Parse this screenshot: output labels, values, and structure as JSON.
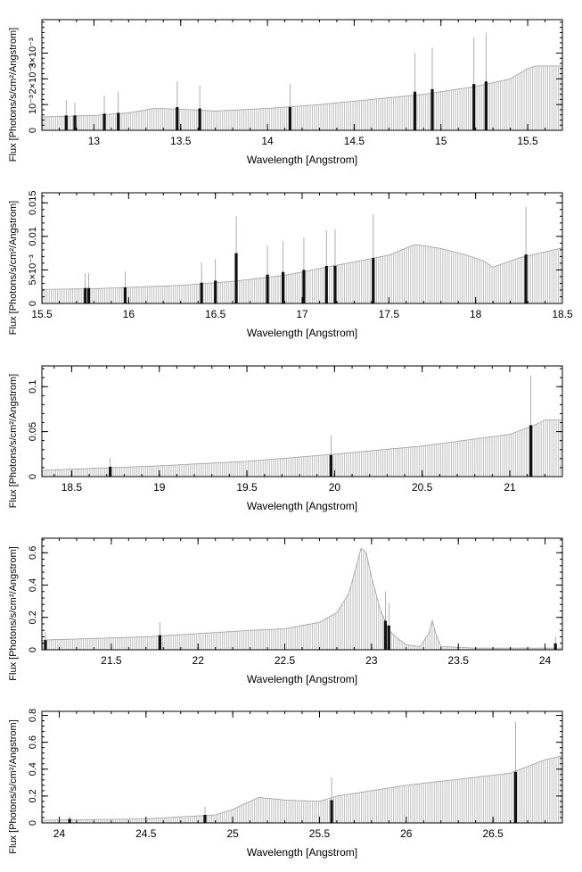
{
  "chart_data": [
    {
      "type": "bar",
      "xlabel": "Wavelength [Angstrom]",
      "ylabel": "Flux [Photons/s/cm²/Angstrom]",
      "xlim": [
        12.7,
        15.7
      ],
      "ylim": [
        0,
        0.0043
      ],
      "xticks": [
        13,
        13.5,
        14,
        14.5,
        15,
        15.5
      ],
      "xtick_labels": [
        "13",
        "13.5",
        "14",
        "14.5",
        "15",
        "15.5"
      ],
      "yticks": [
        0,
        0.001,
        0.002,
        0.003
      ],
      "ytick_labels": [
        "0",
        "10⁻³",
        "2×10⁻³",
        "3×10⁻³"
      ],
      "continuum": [
        [
          12.7,
          0.00052
        ],
        [
          13.0,
          0.00058
        ],
        [
          13.2,
          0.00068
        ],
        [
          13.35,
          0.00085
        ],
        [
          13.5,
          0.00082
        ],
        [
          13.7,
          0.00075
        ],
        [
          14.0,
          0.00085
        ],
        [
          14.3,
          0.001
        ],
        [
          14.6,
          0.0012
        ],
        [
          14.9,
          0.0014
        ],
        [
          15.2,
          0.0017
        ],
        [
          15.4,
          0.002
        ],
        [
          15.5,
          0.0024
        ],
        [
          15.55,
          0.0025
        ],
        [
          15.7,
          0.0025
        ]
      ],
      "lines": [
        {
          "x": 12.84,
          "flux": 0.00058,
          "err": 0.0006
        },
        {
          "x": 12.89,
          "flux": 0.00058,
          "err": 0.0005
        },
        {
          "x": 13.06,
          "flux": 0.00065,
          "err": 0.0007
        },
        {
          "x": 13.14,
          "flux": 0.00068,
          "err": 0.0008
        },
        {
          "x": 13.48,
          "flux": 0.0009,
          "err": 0.001
        },
        {
          "x": 13.61,
          "flux": 0.00085,
          "err": 0.0009
        },
        {
          "x": 14.13,
          "flux": 0.0009,
          "err": 0.0009
        },
        {
          "x": 14.85,
          "flux": 0.0015,
          "err": 0.0015
        },
        {
          "x": 14.95,
          "flux": 0.0016,
          "err": 0.0016
        },
        {
          "x": 15.19,
          "flux": 0.0018,
          "err": 0.0018
        },
        {
          "x": 15.26,
          "flux": 0.0019,
          "err": 0.0019
        }
      ]
    },
    {
      "type": "bar",
      "xlabel": "Wavelength [Angstrom]",
      "ylabel": "Flux [Photons/s/cm²/Angstrom]",
      "xlim": [
        15.5,
        18.5
      ],
      "ylim": [
        0,
        0.0165
      ],
      "xticks": [
        15.5,
        16,
        16.5,
        17,
        17.5,
        18,
        18.5
      ],
      "xtick_labels": [
        "15.5",
        "16",
        "16.5",
        "17",
        "17.5",
        "18",
        "18.5"
      ],
      "yticks": [
        0,
        0.005,
        0.01,
        0.015
      ],
      "ytick_labels": [
        "0",
        "5×10⁻³",
        "0.01",
        "0.015"
      ],
      "continuum": [
        [
          15.5,
          0.0021
        ],
        [
          15.8,
          0.0022
        ],
        [
          16.0,
          0.0024
        ],
        [
          16.3,
          0.0027
        ],
        [
          16.6,
          0.0033
        ],
        [
          16.9,
          0.0042
        ],
        [
          17.1,
          0.0052
        ],
        [
          17.3,
          0.0062
        ],
        [
          17.5,
          0.0072
        ],
        [
          17.65,
          0.0088
        ],
        [
          17.8,
          0.0082
        ],
        [
          17.95,
          0.0072
        ],
        [
          18.05,
          0.0063
        ],
        [
          18.1,
          0.0054
        ],
        [
          18.25,
          0.0068
        ],
        [
          18.5,
          0.0083
        ]
      ],
      "lines": [
        {
          "x": 15.75,
          "flux": 0.0023,
          "err": 0.0022
        },
        {
          "x": 15.77,
          "flux": 0.0023,
          "err": 0.0022
        },
        {
          "x": 15.98,
          "flux": 0.0024,
          "err": 0.0024
        },
        {
          "x": 16.42,
          "flux": 0.0031,
          "err": 0.003
        },
        {
          "x": 16.5,
          "flux": 0.0034,
          "err": 0.0032
        },
        {
          "x": 16.62,
          "flux": 0.0075,
          "err": 0.0055
        },
        {
          "x": 16.8,
          "flux": 0.0043,
          "err": 0.0043
        },
        {
          "x": 16.89,
          "flux": 0.0047,
          "err": 0.0046
        },
        {
          "x": 17.01,
          "flux": 0.005,
          "err": 0.0048
        },
        {
          "x": 17.14,
          "flux": 0.0056,
          "err": 0.0053
        },
        {
          "x": 17.19,
          "flux": 0.0056,
          "err": 0.0055
        },
        {
          "x": 17.41,
          "flux": 0.0068,
          "err": 0.0065
        },
        {
          "x": 18.29,
          "flux": 0.0073,
          "err": 0.0071
        }
      ]
    },
    {
      "type": "bar",
      "xlabel": "Wavelength [Angstrom]",
      "ylabel": "Flux [Photons/s/cm²/Angstrom]",
      "xlim": [
        18.33,
        21.3
      ],
      "ylim": [
        0,
        0.123
      ],
      "xticks": [
        18.5,
        19,
        19.5,
        20,
        20.5,
        21
      ],
      "xtick_labels": [
        "18.5",
        "19",
        "19.5",
        "20",
        "20.5",
        "21"
      ],
      "yticks": [
        0,
        0.05,
        0.1
      ],
      "ytick_labels": [
        "0",
        "0.05",
        "0.1"
      ],
      "continuum": [
        [
          18.33,
          0.007
        ],
        [
          18.6,
          0.009
        ],
        [
          19.0,
          0.012
        ],
        [
          19.5,
          0.017
        ],
        [
          20.0,
          0.025
        ],
        [
          20.5,
          0.034
        ],
        [
          21.0,
          0.047
        ],
        [
          21.15,
          0.058
        ],
        [
          21.2,
          0.063
        ],
        [
          21.3,
          0.063
        ]
      ],
      "lines": [
        {
          "x": 18.72,
          "flux": 0.011,
          "err": 0.01
        },
        {
          "x": 19.98,
          "flux": 0.024,
          "err": 0.022
        },
        {
          "x": 21.12,
          "flux": 0.057,
          "err": 0.055
        }
      ]
    },
    {
      "type": "bar",
      "xlabel": "Wavelength [Angstrom]",
      "ylabel": "Flux [Photons/s/cm²/Angstrom]",
      "xlim": [
        21.1,
        24.1
      ],
      "ylim": [
        0,
        0.69
      ],
      "xticks": [
        21.5,
        22,
        22.5,
        23,
        23.5,
        24
      ],
      "xtick_labels": [
        "21.5",
        "22",
        "22.5",
        "23",
        "23.5",
        "24"
      ],
      "yticks": [
        0,
        0.2,
        0.4,
        0.6
      ],
      "ytick_labels": [
        "0",
        "0.2",
        "0.4",
        "0.6"
      ],
      "continuum": [
        [
          21.1,
          0.06
        ],
        [
          21.4,
          0.07
        ],
        [
          21.7,
          0.08
        ],
        [
          22.0,
          0.1
        ],
        [
          22.3,
          0.12
        ],
        [
          22.5,
          0.13
        ],
        [
          22.7,
          0.17
        ],
        [
          22.8,
          0.23
        ],
        [
          22.87,
          0.35
        ],
        [
          22.92,
          0.55
        ],
        [
          22.94,
          0.63
        ],
        [
          22.97,
          0.6
        ],
        [
          23.0,
          0.45
        ],
        [
          23.05,
          0.25
        ],
        [
          23.1,
          0.12
        ],
        [
          23.15,
          0.07
        ],
        [
          23.2,
          0.03
        ],
        [
          23.28,
          0.02
        ],
        [
          23.33,
          0.1
        ],
        [
          23.35,
          0.18
        ],
        [
          23.37,
          0.1
        ],
        [
          23.4,
          0.02
        ],
        [
          23.6,
          0.01
        ],
        [
          24.1,
          0.01
        ]
      ],
      "lines": [
        {
          "x": 21.12,
          "flux": 0.06,
          "err": 0.05
        },
        {
          "x": 21.78,
          "flux": 0.09,
          "err": 0.08
        },
        {
          "x": 23.08,
          "flux": 0.18,
          "err": 0.18
        },
        {
          "x": 23.1,
          "flux": 0.15,
          "err": 0.14
        },
        {
          "x": 24.06,
          "flux": 0.04,
          "err": 0.04
        }
      ]
    },
    {
      "type": "bar",
      "xlabel": "Wavelength [Angstrom]",
      "ylabel": "Flux [Photons/s/cm²/Angstrom]",
      "xlim": [
        23.9,
        26.9
      ],
      "ylim": [
        0,
        0.83
      ],
      "xticks": [
        24,
        24.5,
        25,
        25.5,
        26,
        26.5
      ],
      "xtick_labels": [
        "24",
        "24.5",
        "25",
        "25.5",
        "26",
        "26.5"
      ],
      "yticks": [
        0,
        0.2,
        0.4,
        0.6,
        0.8
      ],
      "ytick_labels": [
        "0",
        "0.2",
        "0.4",
        "0.6",
        "0.8"
      ],
      "continuum": [
        [
          23.9,
          0.02
        ],
        [
          24.5,
          0.03
        ],
        [
          24.9,
          0.06
        ],
        [
          25.0,
          0.1
        ],
        [
          25.1,
          0.16
        ],
        [
          25.15,
          0.19
        ],
        [
          25.3,
          0.17
        ],
        [
          25.5,
          0.16
        ],
        [
          25.6,
          0.2
        ],
        [
          25.8,
          0.24
        ],
        [
          26.0,
          0.28
        ],
        [
          26.2,
          0.31
        ],
        [
          26.4,
          0.34
        ],
        [
          26.6,
          0.37
        ],
        [
          26.7,
          0.42
        ],
        [
          26.8,
          0.47
        ],
        [
          26.9,
          0.5
        ]
      ],
      "lines": [
        {
          "x": 24.06,
          "flux": 0.03,
          "err": 0.02
        },
        {
          "x": 24.84,
          "flux": 0.06,
          "err": 0.06
        },
        {
          "x": 25.57,
          "flux": 0.17,
          "err": 0.17
        },
        {
          "x": 26.63,
          "flux": 0.38,
          "err": 0.37
        }
      ]
    }
  ]
}
